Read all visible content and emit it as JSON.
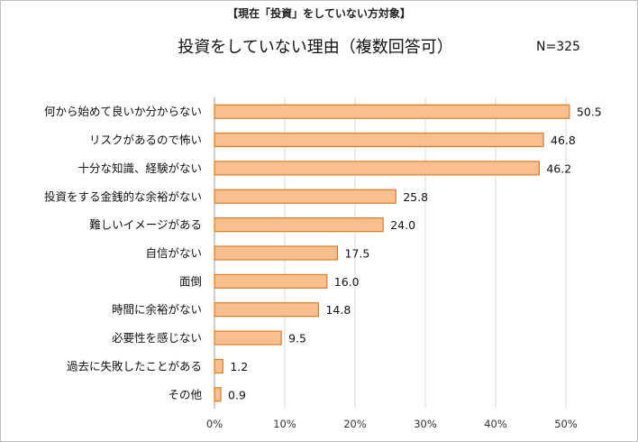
{
  "subtitle": "【現在「投資」をしていない方対象】",
  "title": "投資をしていない理由（複数回答可）",
  "n_label": "N=325",
  "colors": {
    "bar_fill": "#F9BF8F",
    "bar_stroke": "#E07B24",
    "grid": "#d9d9d9"
  },
  "chart_data": {
    "type": "bar",
    "orientation": "horizontal",
    "title": "投資をしていない理由（複数回答可）",
    "categories": [
      "何から始めて良いか分からない",
      "リスクがあるので怖い",
      "十分な知識、経験がない",
      "投資をする金銭的な余裕がない",
      "難しいイメージがある",
      "自信がない",
      "面倒",
      "時間に余裕がない",
      "必要性を感じない",
      "過去に失敗したことがある",
      "その他"
    ],
    "values": [
      50.5,
      46.8,
      46.2,
      25.8,
      24.0,
      17.5,
      16.0,
      14.8,
      9.5,
      1.2,
      0.9
    ],
    "value_labels": [
      "50.5",
      "46.8",
      "46.2",
      "25.8",
      "24.0",
      "17.5",
      "16.0",
      "14.8",
      "9.5",
      "1.2",
      "0.9"
    ],
    "xlim": [
      0,
      50
    ],
    "x_ticks": [
      "0%",
      "10%",
      "20%",
      "30%",
      "40%",
      "50%"
    ],
    "grid": true,
    "legend": "none"
  }
}
